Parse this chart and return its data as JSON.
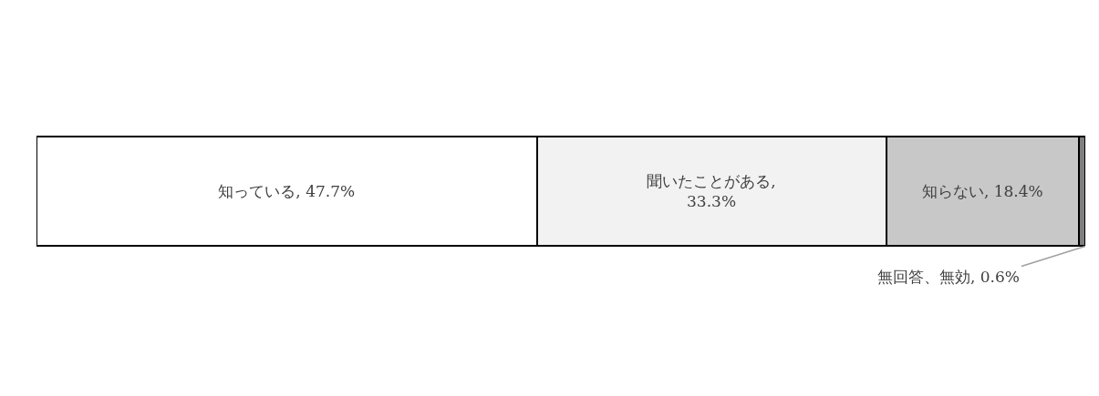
{
  "chart_data": {
    "type": "bar",
    "orientation": "horizontal",
    "stacked": true,
    "categories": [
      null
    ],
    "series": [
      {
        "color": "#ffffff",
        "values": [
          47.7
        ],
        "value_labels": [
          "知っている, 47.7%"
        ]
      },
      {
        "color": "#f2f2f2",
        "values": [
          33.3
        ],
        "value_labels": [
          "聞いたことがある,\n33.3%"
        ]
      },
      {
        "color": "#c8c8c8",
        "values": [
          18.4
        ],
        "value_labels": [
          "知らない, 18.4%"
        ]
      },
      {
        "color": "#7f7f7f",
        "values": [
          0.6
        ],
        "value_labels": [
          "無回答、無効, 0.6%"
        ]
      }
    ],
    "tick_labels": false,
    "legend": false
  }
}
